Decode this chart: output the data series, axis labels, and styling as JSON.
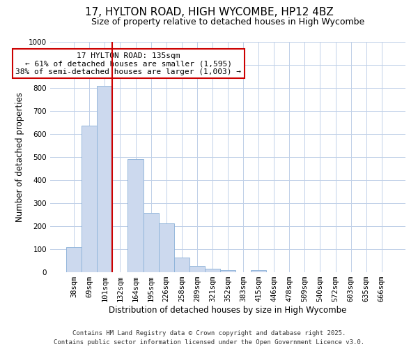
{
  "title": "17, HYLTON ROAD, HIGH WYCOMBE, HP12 4BZ",
  "subtitle": "Size of property relative to detached houses in High Wycombe",
  "xlabel": "Distribution of detached houses by size in High Wycombe",
  "ylabel": "Number of detached properties",
  "bar_labels": [
    "38sqm",
    "69sqm",
    "101sqm",
    "132sqm",
    "164sqm",
    "195sqm",
    "226sqm",
    "258sqm",
    "289sqm",
    "321sqm",
    "352sqm",
    "383sqm",
    "415sqm",
    "446sqm",
    "478sqm",
    "509sqm",
    "540sqm",
    "572sqm",
    "603sqm",
    "635sqm",
    "666sqm"
  ],
  "bar_values": [
    110,
    635,
    810,
    0,
    490,
    258,
    213,
    65,
    28,
    15,
    10,
    0,
    8,
    0,
    0,
    0,
    0,
    0,
    0,
    0,
    0
  ],
  "bar_width": 1.0,
  "bar_color": "#ccd9ee",
  "bar_edge_color": "#8ab0d8",
  "vline_x_index": 3,
  "vline_color": "#cc0000",
  "ylim": [
    0,
    1000
  ],
  "yticks": [
    0,
    100,
    200,
    300,
    400,
    500,
    600,
    700,
    800,
    900,
    1000
  ],
  "annotation_title": "17 HYLTON ROAD: 135sqm",
  "annotation_line1": "← 61% of detached houses are smaller (1,595)",
  "annotation_line2": "38% of semi-detached houses are larger (1,003) →",
  "annotation_box_color": "#ffffff",
  "annotation_border_color": "#cc0000",
  "footer_line1": "Contains HM Land Registry data © Crown copyright and database right 2025.",
  "footer_line2": "Contains public sector information licensed under the Open Government Licence v3.0.",
  "bg_color": "#ffffff",
  "grid_color": "#c0d0e8",
  "title_fontsize": 11,
  "subtitle_fontsize": 9,
  "axis_label_fontsize": 8.5,
  "tick_fontsize": 7.5,
  "annotation_fontsize": 8,
  "footer_fontsize": 6.5
}
